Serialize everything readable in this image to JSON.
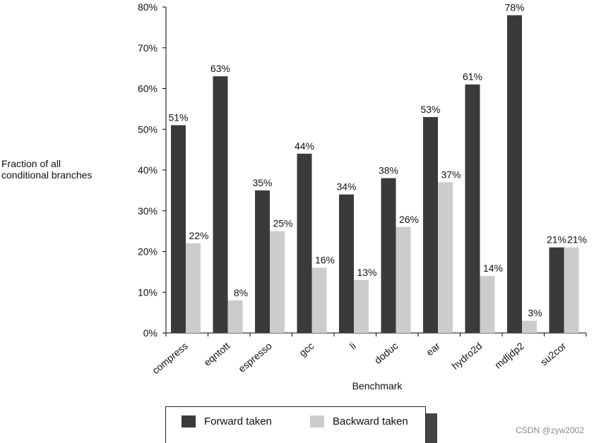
{
  "chart_data": {
    "type": "bar",
    "title": "",
    "xlabel": "Benchmark",
    "ylabel": "Fraction of all\nconditional branches",
    "ylim": [
      0,
      80
    ],
    "ytick_labels": [
      "0%",
      "10%",
      "20%",
      "30%",
      "40%",
      "50%",
      "60%",
      "70%",
      "80%"
    ],
    "categories": [
      "compress",
      "eqntott",
      "espresso",
      "gcc",
      "li",
      "doduc",
      "ear",
      "hydro2d",
      "mdljdp2",
      "su2cor"
    ],
    "series": [
      {
        "name": "Forward taken",
        "color": "#3a3a3a",
        "values": [
          51,
          63,
          35,
          44,
          34,
          38,
          53,
          61,
          78,
          21
        ],
        "labels": [
          "51%",
          "63%",
          "35%",
          "44%",
          "34%",
          "38%",
          "53%",
          "61%",
          "78%",
          "21%"
        ]
      },
      {
        "name": "Backward taken",
        "color": "#cccccc",
        "values": [
          22,
          8,
          25,
          16,
          13,
          26,
          37,
          14,
          3,
          21
        ],
        "labels": [
          "22%",
          "8%",
          "25%",
          "16%",
          "13%",
          "26%",
          "37%",
          "14%",
          "3%",
          "21%"
        ]
      }
    ],
    "legend_position": "bottom",
    "grid": false
  },
  "legend": {
    "forward": "Forward taken",
    "backward": "Backward taken"
  },
  "watermark": "CSDN @zyw2002"
}
